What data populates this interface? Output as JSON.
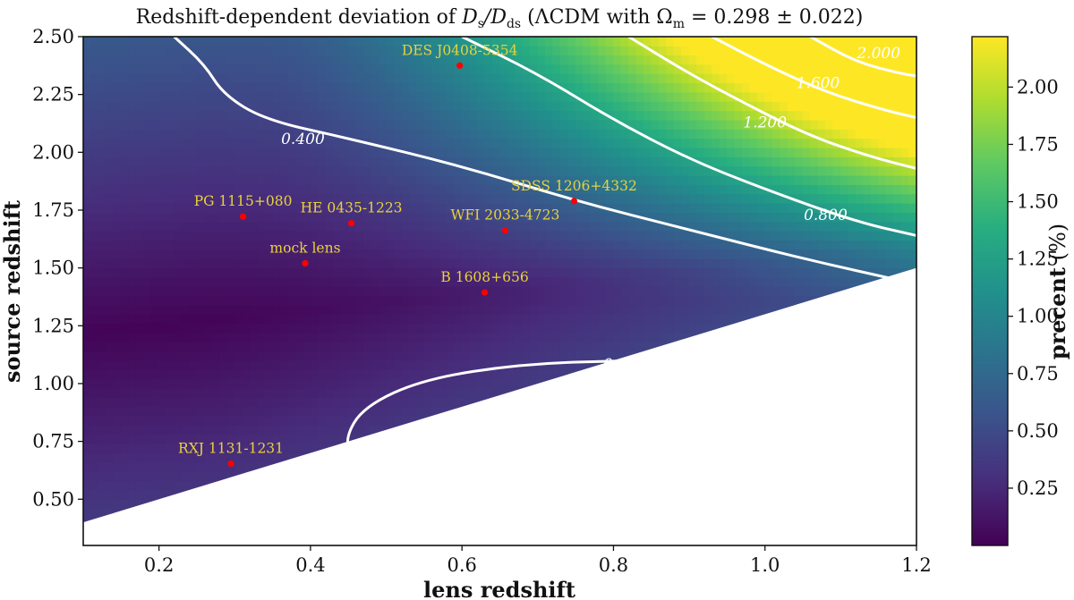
{
  "chart_data": {
    "type": "heatmap",
    "title": "Redshift-dependent deviation of D_s/D_ds (ΛCDM with Ω_m = 0.298 ± 0.022)",
    "title_parts": {
      "prefix": "Redshift-dependent deviation of ",
      "D": "D",
      "s": "s",
      "ds": "ds",
      "slash": "/",
      "middle": " (ΛCDM with Ω",
      "m": "m",
      "suffix": " = 0.298 ± 0.022)"
    },
    "xlabel": "lens redshift",
    "ylabel": "source redshift",
    "colorbar_label": "precent (%)",
    "xlim": [
      0.1,
      1.2
    ],
    "ylim": [
      0.3,
      2.5
    ],
    "xticks": [
      "0.2",
      "0.4",
      "0.6",
      "0.8",
      "1.0",
      "1.2"
    ],
    "yticks": [
      "0.50",
      "0.75",
      "1.00",
      "1.25",
      "1.50",
      "1.75",
      "2.00",
      "2.25",
      "2.50"
    ],
    "colorbar_range": [
      0.0,
      2.22
    ],
    "colorbar_ticks": [
      "0.25",
      "0.50",
      "0.75",
      "1.00",
      "1.25",
      "1.50",
      "1.75",
      "2.00"
    ],
    "colormap": [
      "#440154",
      "#472d7b",
      "#3b528b",
      "#2c728e",
      "#21918c",
      "#28ae80",
      "#5ec962",
      "#addc30",
      "#fde725"
    ],
    "masked_region": "source redshift below 0.3 + 1.0 × lens redshift (white)",
    "contour_levels": [
      {
        "label": "0.400",
        "value": 0.4
      },
      {
        "label": "0.400",
        "value": 0.4
      },
      {
        "label": "0.800",
        "value": 0.8
      },
      {
        "label": "1.200",
        "value": 1.2
      },
      {
        "label": "1.600",
        "value": 1.6
      },
      {
        "label": "2.000",
        "value": 2.0
      }
    ],
    "lenses": [
      {
        "name": "DES J0408-5354",
        "x": 0.597,
        "y": 2.375
      },
      {
        "name": "SDSS 1206+4332",
        "x": 0.748,
        "y": 1.789
      },
      {
        "name": "PG 1115+080",
        "x": 0.311,
        "y": 1.722
      },
      {
        "name": "HE 0435-1223",
        "x": 0.454,
        "y": 1.693
      },
      {
        "name": "WFI 2033-4723",
        "x": 0.657,
        "y": 1.662
      },
      {
        "name": "mock lens",
        "x": 0.393,
        "y": 1.52
      },
      {
        "name": "B 1608+656",
        "x": 0.63,
        "y": 1.394
      },
      {
        "name": "RXJ 1131-1231",
        "x": 0.295,
        "y": 0.654
      }
    ],
    "marker_color": "#ff0000",
    "label_color": "#e8d23a"
  }
}
